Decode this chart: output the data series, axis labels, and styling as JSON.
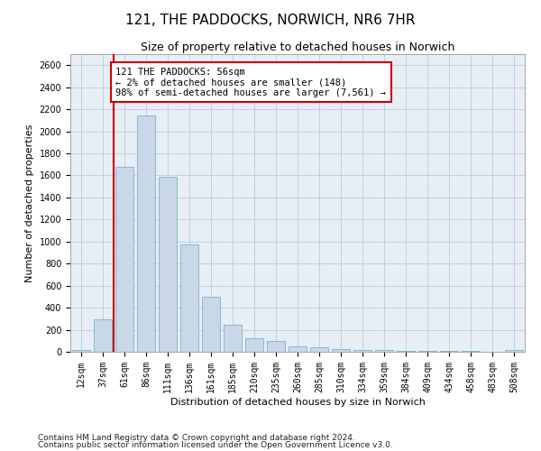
{
  "title": "121, THE PADDOCKS, NORWICH, NR6 7HR",
  "subtitle": "Size of property relative to detached houses in Norwich",
  "xlabel": "Distribution of detached houses by size in Norwich",
  "ylabel": "Number of detached properties",
  "bar_color": "#c8d8e8",
  "bar_edge_color": "#7ab0cc",
  "annotation_box_color": "#cc0000",
  "vline_color": "#cc0000",
  "vline_x_index": 1.5,
  "annotation_text": "121 THE PADDOCKS: 56sqm\n← 2% of detached houses are smaller (148)\n98% of semi-detached houses are larger (7,561) →",
  "categories": [
    "12sqm",
    "37sqm",
    "61sqm",
    "86sqm",
    "111sqm",
    "136sqm",
    "161sqm",
    "185sqm",
    "210sqm",
    "235sqm",
    "260sqm",
    "285sqm",
    "310sqm",
    "334sqm",
    "359sqm",
    "384sqm",
    "409sqm",
    "434sqm",
    "458sqm",
    "483sqm",
    "508sqm"
  ],
  "values": [
    20,
    295,
    1675,
    2140,
    1590,
    970,
    500,
    245,
    120,
    100,
    50,
    40,
    25,
    18,
    18,
    12,
    8,
    8,
    5,
    3,
    15
  ],
  "ylim": [
    0,
    2700
  ],
  "yticks": [
    0,
    200,
    400,
    600,
    800,
    1000,
    1200,
    1400,
    1600,
    1800,
    2000,
    2200,
    2400,
    2600
  ],
  "footnote1": "Contains HM Land Registry data © Crown copyright and database right 2024.",
  "footnote2": "Contains public sector information licensed under the Open Government Licence v3.0.",
  "background_color": "#ffffff",
  "plot_bg_color": "#e8eef5",
  "grid_color": "#b8ccd8",
  "title_fontsize": 11,
  "subtitle_fontsize": 9,
  "tick_fontsize": 7,
  "ylabel_fontsize": 8,
  "xlabel_fontsize": 8,
  "annotation_fontsize": 7.5,
  "footnote_fontsize": 6.5
}
